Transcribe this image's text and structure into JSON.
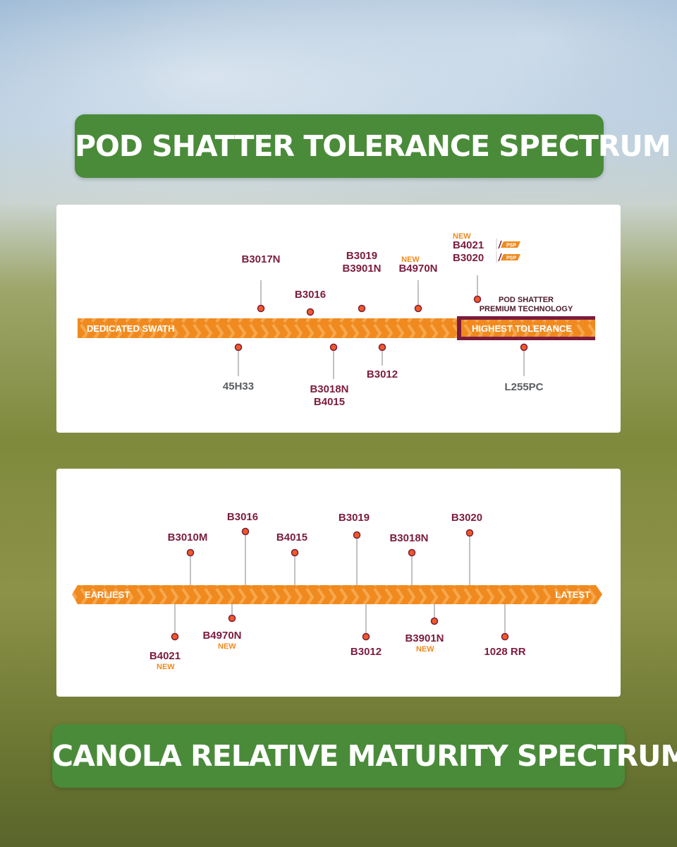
{
  "top_title": "POD SHATTER TOLERANCE SPECTRUM",
  "bottom_title": "CANOLA RELATIVE MATURITY SPECTRUM",
  "colors": {
    "green": "#4a8b3a",
    "orange": "#f08a1f",
    "maroon": "#7b1c3e",
    "gray": "#5a5d60"
  },
  "shatter": {
    "left_label": "DEDICATED SWATH",
    "right_label": "HIGHEST TOLERANCE",
    "psp_line1": "POD SHATTER",
    "psp_line2": "PREMIUM TECHNOLOGY",
    "psp_badge": "PSP",
    "new_tag": "NEW",
    "above": [
      {
        "lines": [
          "B3017N"
        ]
      },
      {
        "lines": [
          "B3016"
        ]
      },
      {
        "lines": [
          "B3019",
          "B3901N"
        ]
      },
      {
        "lines": [
          "B4970N"
        ],
        "new": true
      },
      {
        "lines": [
          "B4021",
          "B3020"
        ],
        "new": true,
        "psp": true
      }
    ],
    "below": [
      {
        "lines": [
          "45H33"
        ],
        "gray": true
      },
      {
        "lines": [
          "B3018N",
          "B4015"
        ]
      },
      {
        "lines": [
          "B3012"
        ]
      },
      {
        "lines": [
          "L255PC"
        ],
        "gray": true
      }
    ]
  },
  "maturity": {
    "left_label": "EARLIEST",
    "right_label": "LATEST",
    "new_tag": "NEW",
    "above": [
      {
        "label": "B3010M"
      },
      {
        "label": "B3016"
      },
      {
        "label": "B4015"
      },
      {
        "label": "B3019"
      },
      {
        "label": "B3018N"
      },
      {
        "label": "B3020"
      }
    ],
    "below": [
      {
        "label": "B4021",
        "new": true
      },
      {
        "label": "B4970N",
        "new": true
      },
      {
        "label": "B3012"
      },
      {
        "label": "B3901N",
        "new": true
      },
      {
        "label": "1028 RR"
      }
    ]
  }
}
